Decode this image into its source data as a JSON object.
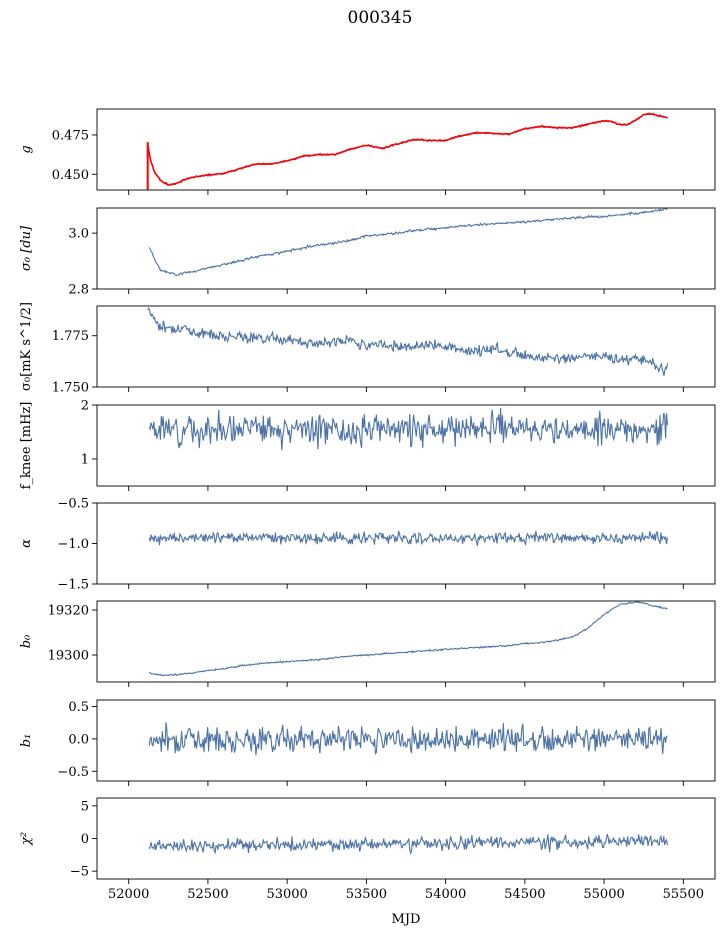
{
  "figure": {
    "title": "000345",
    "xlabel": "MJD",
    "line_color": "#4c72a6",
    "fit_color": "#ff0000"
  },
  "chart_data": [
    {
      "type": "line",
      "ylabel": "g",
      "ylim": [
        0.44,
        0.4915
      ],
      "yticks": [
        0.45,
        0.475
      ],
      "yticklabels": [
        "0.450",
        "0.475"
      ],
      "xlim": [
        51800,
        55700
      ],
      "series": [
        {
          "x": [
            52120,
            52135,
            52160,
            52200,
            52250,
            52300,
            52350,
            52400,
            52500,
            52600,
            52700,
            52800,
            52900,
            53000,
            53100,
            53200,
            53300,
            53400,
            53500,
            53600,
            53700,
            53800,
            53900,
            54000,
            54100,
            54200,
            54300,
            54400,
            54500,
            54600,
            54700,
            54800,
            54900,
            55000,
            55050,
            55100,
            55150,
            55200,
            55250,
            55300,
            55350,
            55400
          ],
          "y": [
            0.469,
            0.46,
            0.452,
            0.446,
            0.4435,
            0.444,
            0.4465,
            0.448,
            0.4495,
            0.4505,
            0.4535,
            0.4565,
            0.4565,
            0.4585,
            0.4615,
            0.4625,
            0.4625,
            0.466,
            0.4685,
            0.4665,
            0.4695,
            0.472,
            0.4715,
            0.4715,
            0.4745,
            0.4765,
            0.476,
            0.4755,
            0.479,
            0.4805,
            0.4795,
            0.4795,
            0.482,
            0.484,
            0.4835,
            0.4815,
            0.4815,
            0.4845,
            0.488,
            0.4885,
            0.487,
            0.486
          ]
        }
      ]
    },
    {
      "type": "line",
      "ylabel": "σ₀ [du]",
      "ylim": [
        2.8,
        3.09
      ],
      "yticks": [
        2.8,
        3.0
      ],
      "yticklabels": [
        "2.8",
        "3.0"
      ],
      "xlim": [
        51800,
        55700
      ],
      "series": [
        {
          "x": [
            52130,
            52160,
            52200,
            52250,
            52300,
            52400,
            52500,
            52600,
            52700,
            52800,
            52900,
            53000,
            53100,
            53200,
            53300,
            53400,
            53500,
            53600,
            53700,
            53800,
            53900,
            54000,
            54100,
            54200,
            54300,
            54400,
            54500,
            54600,
            54700,
            54800,
            54900,
            55000,
            55100,
            55200,
            55300,
            55400
          ],
          "y": [
            2.95,
            2.91,
            2.87,
            2.858,
            2.852,
            2.862,
            2.875,
            2.888,
            2.9,
            2.915,
            2.925,
            2.935,
            2.948,
            2.958,
            2.965,
            2.975,
            2.99,
            2.995,
            3.0,
            3.01,
            3.015,
            3.02,
            3.025,
            3.03,
            3.033,
            3.037,
            3.04,
            3.045,
            3.05,
            3.055,
            3.058,
            3.06,
            3.065,
            3.07,
            3.078,
            3.088
          ]
        }
      ]
    },
    {
      "type": "line",
      "ylabel": "σ₀[mK s^1/2]",
      "ylim": [
        1.75,
        1.7895
      ],
      "yticks": [
        1.75,
        1.775
      ],
      "yticklabels": [
        "1.750",
        "1.775"
      ],
      "xlim": [
        51800,
        55700
      ],
      "series": [
        {
          "x": [
            52120,
            52150,
            52200,
            52300,
            52400,
            52500,
            52600,
            52700,
            52800,
            52900,
            53000,
            53100,
            53200,
            53300,
            53400,
            53500,
            53600,
            53700,
            53800,
            53900,
            54000,
            54100,
            54200,
            54300,
            54400,
            54500,
            54600,
            54700,
            54800,
            54900,
            55000,
            55100,
            55200,
            55300,
            55380,
            55400
          ],
          "y": [
            1.789,
            1.785,
            1.779,
            1.779,
            1.777,
            1.776,
            1.775,
            1.775,
            1.774,
            1.774,
            1.773,
            1.772,
            1.771,
            1.772,
            1.773,
            1.77,
            1.771,
            1.77,
            1.77,
            1.771,
            1.77,
            1.768,
            1.767,
            1.769,
            1.767,
            1.766,
            1.764,
            1.764,
            1.764,
            1.765,
            1.765,
            1.763,
            1.764,
            1.762,
            1.758,
            1.76
          ]
        }
      ]
    },
    {
      "type": "line",
      "ylabel": "f_knee [mHz]",
      "ylim": [
        0.5,
        2.0
      ],
      "yticks": [
        1,
        2
      ],
      "yticklabels": [
        "1",
        "2"
      ],
      "xlim": [
        51800,
        55700
      ],
      "series": [
        {
          "x_range": [
            52130,
            55400
          ],
          "mean": 1.55,
          "spread": 0.2,
          "seed": 3
        }
      ]
    },
    {
      "type": "line",
      "ylabel": "α",
      "ylim": [
        -1.5,
        -0.5
      ],
      "yticks": [
        -1.5,
        -1.0,
        -0.5
      ],
      "yticklabels": [
        "−1.5",
        "−1.0",
        "−0.5"
      ],
      "xlim": [
        51800,
        55700
      ],
      "series": [
        {
          "x_range": [
            52130,
            55400
          ],
          "mean": -0.93,
          "spread": 0.05,
          "seed": 4
        }
      ]
    },
    {
      "type": "line",
      "ylabel": "b₀",
      "ylim": [
        19288,
        19324
      ],
      "yticks": [
        19300,
        19320
      ],
      "yticklabels": [
        "19300",
        "19320"
      ],
      "xlim": [
        51800,
        55700
      ],
      "series": [
        {
          "x": [
            52130,
            52200,
            52300,
            52400,
            52500,
            52600,
            52700,
            52800,
            52900,
            53000,
            53100,
            53200,
            53300,
            53400,
            53500,
            53600,
            53700,
            53800,
            53900,
            54000,
            54100,
            54200,
            54300,
            54400,
            54500,
            54600,
            54700,
            54800,
            54900,
            55000,
            55100,
            55200,
            55250,
            55300,
            55400
          ],
          "y": [
            19292,
            19291,
            19291.3,
            19292,
            19293,
            19294,
            19295,
            19296,
            19296.5,
            19297,
            19297.5,
            19298,
            19298.8,
            19299.5,
            19300,
            19300.5,
            19301,
            19301.5,
            19302,
            19302.5,
            19303,
            19303.3,
            19303.7,
            19304.3,
            19305,
            19305.5,
            19306.5,
            19308,
            19312,
            19318,
            19322.5,
            19323.5,
            19323,
            19322,
            19320.5
          ]
        }
      ]
    },
    {
      "type": "line",
      "ylabel": "b₁",
      "ylim": [
        -0.65,
        0.6
      ],
      "yticks": [
        -0.5,
        0.0,
        0.5
      ],
      "yticklabels": [
        "−0.5",
        "0.0",
        "0.5"
      ],
      "xlim": [
        51800,
        55700
      ],
      "series": [
        {
          "x_range": [
            52130,
            55400
          ],
          "mean": 0.0,
          "spread": 0.14,
          "seed": 7
        }
      ]
    },
    {
      "type": "line",
      "ylabel": "χ²",
      "ylim": [
        -6.2,
        6.2
      ],
      "yticks": [
        -5,
        0,
        5
      ],
      "yticklabels": [
        "−5",
        "0",
        "5"
      ],
      "xticks": [
        52000,
        52500,
        53000,
        53500,
        54000,
        54500,
        55000,
        55500
      ],
      "xticklabels": [
        "52000",
        "52500",
        "53000",
        "53500",
        "54000",
        "54500",
        "55000",
        "55500"
      ],
      "xlim": [
        51800,
        55700
      ],
      "series": [
        {
          "x_range": [
            52130,
            55400
          ],
          "mean": -1.2,
          "spread": 0.7,
          "seed": 11,
          "trend": 0.8
        }
      ]
    }
  ]
}
